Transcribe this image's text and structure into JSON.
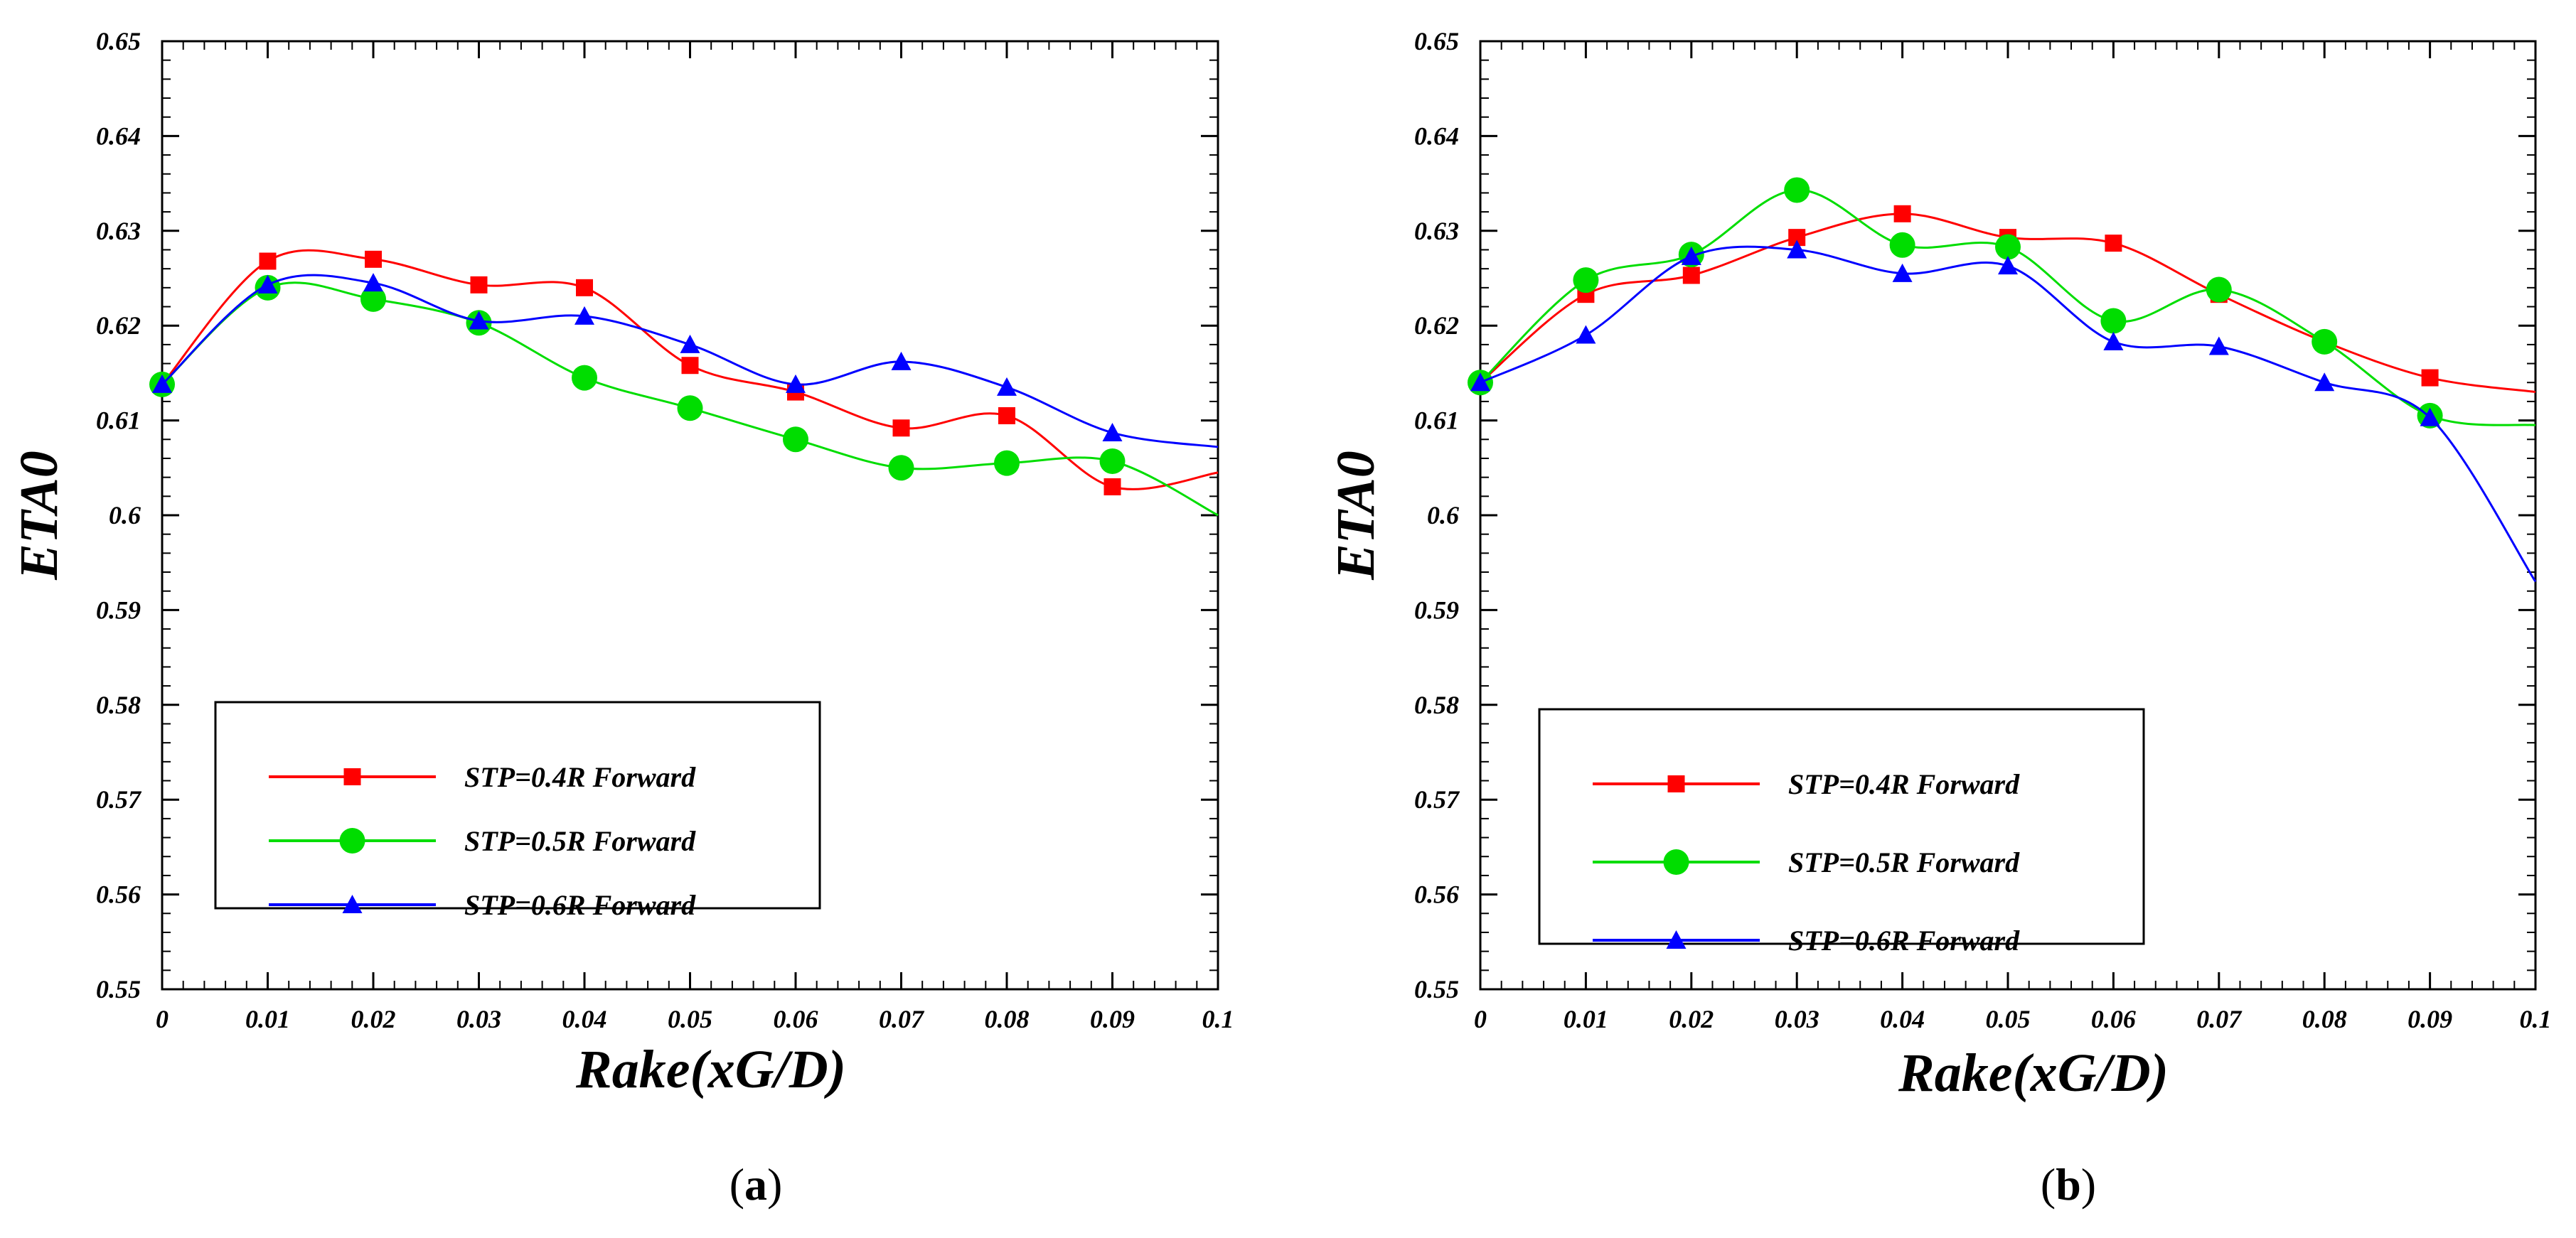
{
  "chart_data": [
    {
      "type": "line",
      "panel_label": "a",
      "xlabel": "Rake(xG/D)",
      "ylabel": "ETA0",
      "xlim": [
        0,
        0.1
      ],
      "ylim": [
        0.55,
        0.65
      ],
      "xticks": [
        0,
        0.01,
        0.02,
        0.03,
        0.04,
        0.05,
        0.06,
        0.07,
        0.08,
        0.09,
        0.1
      ],
      "xtick_labels": [
        "0",
        "0.01",
        "0.02",
        "0.03",
        "0.04",
        "0.05",
        "0.06",
        "0.07",
        "0.08",
        "0.09",
        "0.1"
      ],
      "yticks": [
        0.55,
        0.56,
        0.57,
        0.58,
        0.59,
        0.6,
        0.61,
        0.62,
        0.63,
        0.64,
        0.65
      ],
      "ytick_labels": [
        "0.55",
        "0.56",
        "0.57",
        "0.58",
        "0.59",
        "0.6",
        "0.61",
        "0.62",
        "0.63",
        "0.64",
        "0.65"
      ],
      "x": [
        0,
        0.01,
        0.02,
        0.03,
        0.04,
        0.05,
        0.06,
        0.07,
        0.08,
        0.09
      ],
      "series": [
        {
          "name": "STP=0.4R Forward",
          "color": "#ff0000",
          "marker": "square",
          "values": [
            0.6138,
            0.6268,
            0.627,
            0.6243,
            0.624,
            0.6158,
            0.613,
            0.6092,
            0.6105,
            0.603
          ],
          "curve_end": 0.6045
        },
        {
          "name": "STP=0.5R Forward",
          "color": "#00dd00",
          "marker": "circle",
          "values": [
            0.6138,
            0.624,
            0.6228,
            0.6203,
            0.6145,
            0.6113,
            0.608,
            0.605,
            0.6055,
            0.6057
          ],
          "curve_end": 0.6
        },
        {
          "name": "STP=0.6R Forward",
          "color": "#0000ff",
          "marker": "triangle",
          "values": [
            0.6138,
            0.6243,
            0.6245,
            0.6205,
            0.621,
            0.618,
            0.6138,
            0.6162,
            0.6135,
            0.6087
          ],
          "curve_end": 0.6072
        }
      ],
      "legend_position": "lower-left"
    },
    {
      "type": "line",
      "panel_label": "b",
      "xlabel": "Rake(xG/D)",
      "ylabel": "ETA0",
      "xlim": [
        0,
        0.1
      ],
      "ylim": [
        0.55,
        0.65
      ],
      "xticks": [
        0,
        0.01,
        0.02,
        0.03,
        0.04,
        0.05,
        0.06,
        0.07,
        0.08,
        0.09,
        0.1
      ],
      "xtick_labels": [
        "0",
        "0.01",
        "0.02",
        "0.03",
        "0.04",
        "0.05",
        "0.06",
        "0.07",
        "0.08",
        "0.09",
        "0.1"
      ],
      "yticks": [
        0.55,
        0.56,
        0.57,
        0.58,
        0.59,
        0.6,
        0.61,
        0.62,
        0.63,
        0.64,
        0.65
      ],
      "ytick_labels": [
        "0.55",
        "0.56",
        "0.57",
        "0.58",
        "0.59",
        "0.6",
        "0.61",
        "0.62",
        "0.63",
        "0.64",
        "0.65"
      ],
      "x": [
        0,
        0.01,
        0.02,
        0.03,
        0.04,
        0.05,
        0.06,
        0.07,
        0.08,
        0.09
      ],
      "series": [
        {
          "name": "STP=0.4R Forward",
          "color": "#ff0000",
          "marker": "square",
          "values": [
            0.614,
            0.6233,
            0.6253,
            0.6293,
            0.6318,
            0.6293,
            0.6287,
            0.6233,
            0.6183,
            0.6145
          ],
          "curve_end": 0.613
        },
        {
          "name": "STP=0.5R Forward",
          "color": "#00dd00",
          "marker": "circle",
          "values": [
            0.614,
            0.6248,
            0.6275,
            0.6343,
            0.6285,
            0.6283,
            0.6205,
            0.6238,
            0.6183,
            0.6105
          ],
          "curve_end": 0.6095
        },
        {
          "name": "STP=0.6R Forward",
          "color": "#0000ff",
          "marker": "triangle",
          "values": [
            0.614,
            0.619,
            0.6273,
            0.628,
            0.6255,
            0.6263,
            0.6183,
            0.6178,
            0.614,
            0.6103
          ],
          "curve_end": 0.593
        }
      ],
      "legend_position": "lower-left"
    }
  ],
  "captions": [
    {
      "open": "(",
      "letter": "a",
      "close": ")"
    },
    {
      "open": "(",
      "letter": "b",
      "close": ")"
    }
  ]
}
